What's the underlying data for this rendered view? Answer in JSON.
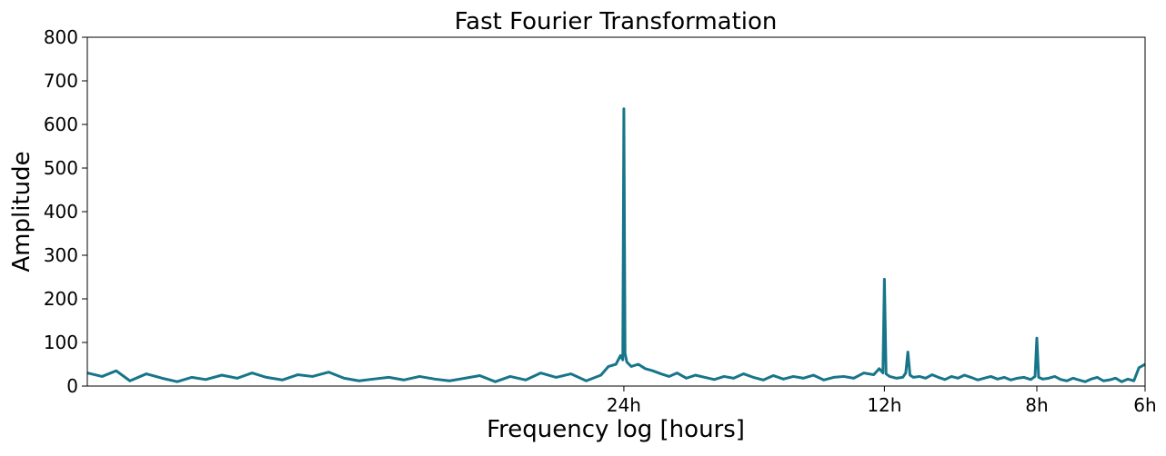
{
  "chart_data": {
    "type": "line",
    "title": "Fast Fourier Transformation",
    "xlabel": "Frequency log [hours]",
    "ylabel": "Amplitude",
    "x_scale": "log",
    "x_unit": "cycles per hour",
    "xlim": [
      0.01,
      0.1667
    ],
    "ylim": [
      0,
      800
    ],
    "y_ticks": [
      "0",
      "100",
      "200",
      "300",
      "400",
      "500",
      "600",
      "700",
      "800"
    ],
    "x_ticks": [
      {
        "label": "24h",
        "value": 0.04167
      },
      {
        "label": "12h",
        "value": 0.08333
      },
      {
        "label": "8h",
        "value": 0.125
      },
      {
        "label": "6h",
        "value": 0.1667
      }
    ],
    "grid": false,
    "line_color": "#17758a",
    "series": [
      {
        "x": [
          0.01,
          0.0104,
          0.0108,
          0.0112,
          0.0117,
          0.0122,
          0.0127,
          0.0132,
          0.0137,
          0.0143,
          0.0149,
          0.0155,
          0.0161,
          0.0168,
          0.0175,
          0.0182,
          0.019,
          0.0198,
          0.0206,
          0.0214,
          0.0223,
          0.0232,
          0.0242,
          0.0252,
          0.0262,
          0.0273,
          0.0284,
          0.0296,
          0.0308,
          0.0321,
          0.0334,
          0.0348,
          0.0362,
          0.0377,
          0.0392,
          0.04,
          0.0408,
          0.0413,
          0.04155,
          0.04167,
          0.0418,
          0.042,
          0.0425,
          0.0433,
          0.0441,
          0.045,
          0.046,
          0.047,
          0.048,
          0.0492,
          0.0504,
          0.0517,
          0.053,
          0.0544,
          0.0558,
          0.0573,
          0.0588,
          0.0604,
          0.062,
          0.0637,
          0.0654,
          0.0672,
          0.069,
          0.0709,
          0.0728,
          0.0748,
          0.0768,
          0.0789,
          0.081,
          0.0822,
          0.083,
          0.08333,
          0.0837,
          0.0845,
          0.086,
          0.0875,
          0.0882,
          0.0887,
          0.0892,
          0.09,
          0.0915,
          0.093,
          0.0946,
          0.0962,
          0.0979,
          0.0996,
          0.1013,
          0.1031,
          0.1049,
          0.1068,
          0.1087,
          0.1106,
          0.1126,
          0.1146,
          0.1166,
          0.1187,
          0.1208,
          0.123,
          0.1244,
          0.125,
          0.1256,
          0.127,
          0.129,
          0.1311,
          0.1332,
          0.1354,
          0.1376,
          0.1398,
          0.1421,
          0.1444,
          0.1468,
          0.1492,
          0.1516,
          0.1541,
          0.1566,
          0.1592,
          0.1618,
          0.164,
          0.1667
        ],
        "y": [
          30,
          22,
          35,
          12,
          28,
          18,
          10,
          20,
          15,
          25,
          18,
          30,
          20,
          14,
          26,
          22,
          32,
          18,
          12,
          16,
          20,
          14,
          22,
          16,
          12,
          18,
          24,
          10,
          22,
          14,
          30,
          20,
          28,
          12,
          25,
          45,
          50,
          70,
          60,
          636,
          75,
          55,
          45,
          50,
          40,
          35,
          28,
          22,
          30,
          18,
          25,
          20,
          15,
          22,
          18,
          28,
          20,
          14,
          24,
          16,
          22,
          18,
          25,
          14,
          20,
          22,
          18,
          30,
          26,
          40,
          30,
          245,
          28,
          22,
          18,
          20,
          30,
          78,
          25,
          20,
          22,
          18,
          26,
          20,
          15,
          22,
          18,
          25,
          20,
          14,
          18,
          22,
          16,
          20,
          14,
          18,
          20,
          15,
          22,
          110,
          20,
          16,
          18,
          22,
          15,
          12,
          18,
          14,
          10,
          16,
          20,
          12,
          14,
          18,
          10,
          16,
          12,
          42,
          50
        ]
      }
    ]
  }
}
